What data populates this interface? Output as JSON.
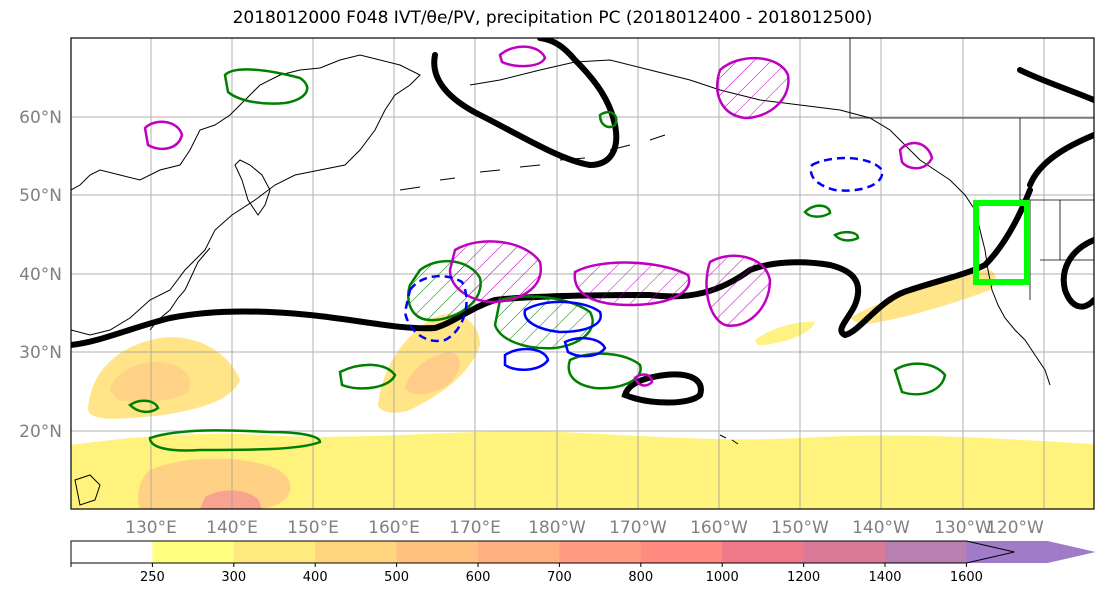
{
  "title": "2018012000 F048 IVT/θe/PV, precipitation PC (2018012400 - 2018012500)",
  "map": {
    "lon_range": [
      120,
      245
    ],
    "lat_range": [
      10,
      70
    ],
    "latitude_labels": [
      "60°N",
      "50°N",
      "40°N",
      "30°N",
      "20°N"
    ],
    "longitude_labels": [
      "130°E",
      "140°E",
      "150°E",
      "160°E",
      "170°E",
      "180°W",
      "170°W",
      "160°W",
      "150°W",
      "140°W",
      "130°W",
      "120°W"
    ],
    "gridlines": true,
    "target_box_color": "#00ff00",
    "colors": {
      "thick_contour": "#000000",
      "ivt_contour": "#008000",
      "pv_contour": "#c000c0",
      "theta_e_contour": "#0000ff"
    }
  },
  "colorbar": {
    "levels": [
      "250",
      "300",
      "400",
      "500",
      "600",
      "700",
      "800",
      "1000",
      "1200",
      "1400",
      "1600"
    ],
    "colors": [
      "#ffff80",
      "#ffea80",
      "#ffd580",
      "#ffc080",
      "#ffb080",
      "#ff9b80",
      "#ff8a80",
      "#f07a88",
      "#d87a98",
      "#b880b0",
      "#a07cc8"
    ]
  }
}
